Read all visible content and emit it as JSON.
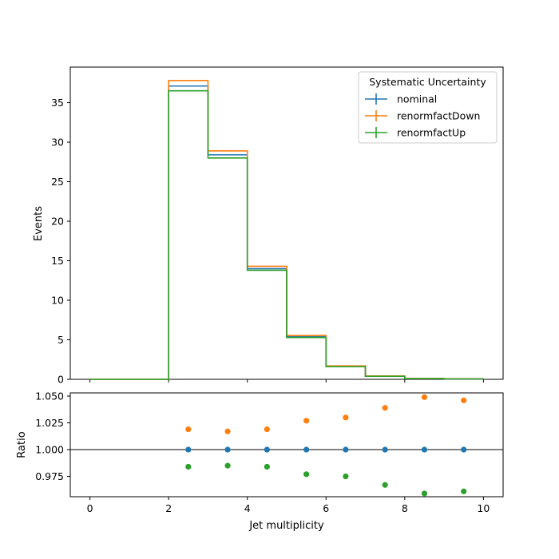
{
  "chart_data": [
    {
      "type": "line",
      "subtype": "step-histogram",
      "title": "",
      "xlabel": "",
      "ylabel": "Events",
      "xlim": [
        -0.5,
        10.5
      ],
      "ylim": [
        0,
        39.5
      ],
      "x_ticks": [
        0,
        2,
        4,
        6,
        8,
        10
      ],
      "x_tick_labels_visible": false,
      "y_ticks": [
        0,
        5,
        10,
        15,
        20,
        25,
        30,
        35
      ],
      "bin_edges": [
        0,
        1,
        2,
        3,
        4,
        5,
        6,
        7,
        8,
        9,
        10
      ],
      "series": [
        {
          "name": "nominal",
          "color": "#1f77b4",
          "values": [
            0,
            0,
            37.1,
            28.4,
            14.0,
            5.4,
            1.65,
            0.4,
            0.1,
            0.06
          ]
        },
        {
          "name": "renormfactDown",
          "color": "#ff7f0e",
          "values": [
            0,
            0,
            37.8,
            28.9,
            14.3,
            5.55,
            1.7,
            0.42,
            0.105,
            0.063
          ]
        },
        {
          "name": "renormfactUp",
          "color": "#2ca02c",
          "values": [
            0,
            0,
            36.5,
            28.0,
            13.8,
            5.28,
            1.61,
            0.39,
            0.096,
            0.058
          ]
        }
      ],
      "legend": {
        "title": "Systematic Uncertainty",
        "placement": "top-right"
      },
      "grid": false
    },
    {
      "type": "scatter",
      "title": "",
      "xlabel": "Jet multiplicity",
      "ylabel": "Ratio",
      "xlim": [
        -0.5,
        10.5
      ],
      "ylim": [
        0.956,
        1.053
      ],
      "x_ticks": [
        0,
        2,
        4,
        6,
        8,
        10
      ],
      "y_ticks": [
        0.975,
        1.0,
        1.025,
        1.05
      ],
      "y_tick_labels": [
        "0.975",
        "1.000",
        "1.025",
        "1.050"
      ],
      "reference_line": 1.0,
      "x": [
        2.5,
        3.5,
        4.5,
        5.5,
        6.5,
        7.5,
        8.5,
        9.5
      ],
      "series": [
        {
          "name": "nominal",
          "color": "#1f77b4",
          "values": [
            1.0,
            1.0,
            1.0,
            1.0,
            1.0,
            1.0,
            1.0,
            1.0
          ]
        },
        {
          "name": "renormfactDown",
          "color": "#ff7f0e",
          "values": [
            1.019,
            1.017,
            1.019,
            1.027,
            1.03,
            1.039,
            1.049,
            1.046
          ]
        },
        {
          "name": "renormfactUp",
          "color": "#2ca02c",
          "values": [
            0.984,
            0.985,
            0.984,
            0.977,
            0.975,
            0.967,
            0.959,
            0.961
          ]
        }
      ],
      "grid": false
    }
  ]
}
